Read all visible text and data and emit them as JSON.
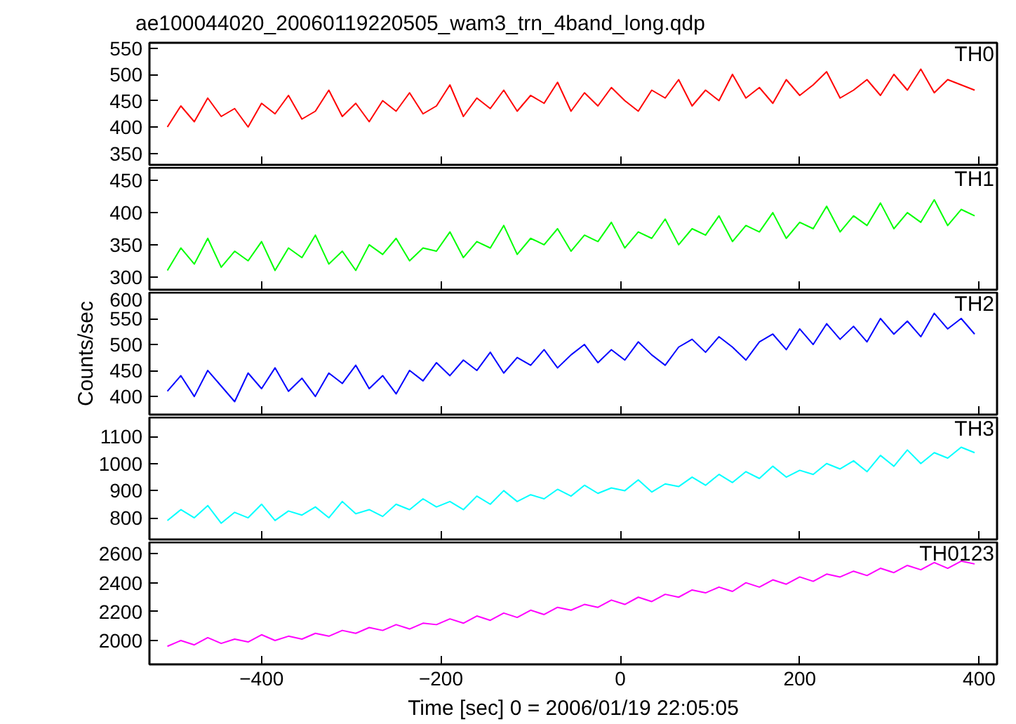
{
  "chart_data": [
    {
      "type": "line",
      "title": "ae100044020_20060119220505_wam3_trn_4band_long.qdp",
      "tick_labels": "y",
      "grid": false,
      "xlim": [
        -525,
        420
      ],
      "xticks": [
        -400,
        -200,
        0,
        200,
        400
      ],
      "ylim": [
        328,
        560
      ],
      "yticks": [
        350,
        400,
        450,
        500,
        550
      ],
      "x": [
        -505,
        -490,
        -475,
        -460,
        -445,
        -430,
        -415,
        -400,
        -385,
        -370,
        -355,
        -340,
        -325,
        -310,
        -295,
        -280,
        -265,
        -250,
        -235,
        -220,
        -205,
        -190,
        -175,
        -160,
        -145,
        -130,
        -115,
        -100,
        -85,
        -70,
        -55,
        -40,
        -25,
        -10,
        5,
        20,
        35,
        50,
        65,
        80,
        95,
        110,
        125,
        140,
        155,
        170,
        185,
        200,
        215,
        230,
        245,
        260,
        275,
        290,
        305,
        320,
        335,
        350,
        365,
        380,
        395
      ],
      "series": [
        {
          "name": "TH0",
          "color": "#ff0000",
          "values": [
            400,
            440,
            410,
            455,
            420,
            435,
            400,
            445,
            425,
            460,
            415,
            430,
            470,
            420,
            445,
            410,
            450,
            430,
            465,
            425,
            440,
            480,
            420,
            455,
            435,
            470,
            430,
            460,
            445,
            485,
            430,
            465,
            440,
            475,
            450,
            430,
            470,
            455,
            490,
            440,
            470,
            450,
            500,
            455,
            475,
            445,
            490,
            460,
            480,
            505,
            455,
            470,
            490,
            460,
            500,
            470,
            510,
            465,
            490,
            480,
            470
          ]
        }
      ]
    },
    {
      "type": "line",
      "tick_labels": "y",
      "grid": false,
      "xlim": [
        -525,
        420
      ],
      "xticks": [
        -400,
        -200,
        0,
        200,
        400
      ],
      "ylim": [
        280,
        470
      ],
      "yticks": [
        300,
        350,
        400,
        450
      ],
      "x": [
        -505,
        -490,
        -475,
        -460,
        -445,
        -430,
        -415,
        -400,
        -385,
        -370,
        -355,
        -340,
        -325,
        -310,
        -295,
        -280,
        -265,
        -250,
        -235,
        -220,
        -205,
        -190,
        -175,
        -160,
        -145,
        -130,
        -115,
        -100,
        -85,
        -70,
        -55,
        -40,
        -25,
        -10,
        5,
        20,
        35,
        50,
        65,
        80,
        95,
        110,
        125,
        140,
        155,
        170,
        185,
        200,
        215,
        230,
        245,
        260,
        275,
        290,
        305,
        320,
        335,
        350,
        365,
        380,
        395
      ],
      "series": [
        {
          "name": "TH1",
          "color": "#00ff00",
          "values": [
            310,
            345,
            320,
            360,
            315,
            340,
            325,
            355,
            310,
            345,
            330,
            365,
            320,
            340,
            310,
            350,
            335,
            360,
            325,
            345,
            340,
            370,
            330,
            355,
            345,
            380,
            335,
            360,
            350,
            375,
            340,
            365,
            355,
            385,
            345,
            370,
            360,
            390,
            350,
            375,
            365,
            395,
            355,
            380,
            370,
            400,
            360,
            385,
            375,
            410,
            370,
            395,
            380,
            415,
            375,
            400,
            385,
            420,
            380,
            405,
            395
          ]
        }
      ]
    },
    {
      "type": "line",
      "ylabel": "Counts/sec",
      "tick_labels": "y",
      "grid": false,
      "xlim": [
        -525,
        420
      ],
      "xticks": [
        -400,
        -200,
        0,
        200,
        400
      ],
      "ylim": [
        365,
        600
      ],
      "yticks": [
        400,
        450,
        500,
        550,
        600
      ],
      "x": [
        -505,
        -490,
        -475,
        -460,
        -445,
        -430,
        -415,
        -400,
        -385,
        -370,
        -355,
        -340,
        -325,
        -310,
        -295,
        -280,
        -265,
        -250,
        -235,
        -220,
        -205,
        -190,
        -175,
        -160,
        -145,
        -130,
        -115,
        -100,
        -85,
        -70,
        -55,
        -40,
        -25,
        -10,
        5,
        20,
        35,
        50,
        65,
        80,
        95,
        110,
        125,
        140,
        155,
        170,
        185,
        200,
        215,
        230,
        245,
        260,
        275,
        290,
        305,
        320,
        335,
        350,
        365,
        380,
        395
      ],
      "series": [
        {
          "name": "TH2",
          "color": "#0000ff",
          "values": [
            410,
            440,
            400,
            450,
            420,
            390,
            445,
            415,
            455,
            410,
            435,
            400,
            445,
            425,
            460,
            415,
            440,
            405,
            450,
            430,
            465,
            440,
            470,
            450,
            485,
            445,
            475,
            460,
            490,
            455,
            480,
            500,
            465,
            490,
            470,
            505,
            480,
            460,
            495,
            510,
            485,
            515,
            495,
            470,
            505,
            520,
            490,
            530,
            500,
            540,
            510,
            535,
            505,
            550,
            520,
            545,
            515,
            560,
            530,
            550,
            520
          ]
        }
      ]
    },
    {
      "type": "line",
      "tick_labels": "y",
      "grid": false,
      "xlim": [
        -525,
        420
      ],
      "xticks": [
        -400,
        -200,
        0,
        200,
        400
      ],
      "ylim": [
        720,
        1170
      ],
      "yticks": [
        800,
        900,
        1000,
        1100
      ],
      "x": [
        -505,
        -490,
        -475,
        -460,
        -445,
        -430,
        -415,
        -400,
        -385,
        -370,
        -355,
        -340,
        -325,
        -310,
        -295,
        -280,
        -265,
        -250,
        -235,
        -220,
        -205,
        -190,
        -175,
        -160,
        -145,
        -130,
        -115,
        -100,
        -85,
        -70,
        -55,
        -40,
        -25,
        -10,
        5,
        20,
        35,
        50,
        65,
        80,
        95,
        110,
        125,
        140,
        155,
        170,
        185,
        200,
        215,
        230,
        245,
        260,
        275,
        290,
        305,
        320,
        335,
        350,
        365,
        380,
        395
      ],
      "series": [
        {
          "name": "TH3",
          "color": "#00ffff",
          "values": [
            790,
            830,
            800,
            845,
            780,
            820,
            800,
            850,
            790,
            825,
            810,
            840,
            800,
            860,
            815,
            830,
            805,
            850,
            830,
            870,
            840,
            860,
            830,
            880,
            850,
            900,
            860,
            885,
            870,
            905,
            880,
            920,
            890,
            910,
            900,
            940,
            895,
            925,
            915,
            950,
            920,
            960,
            930,
            970,
            945,
            990,
            950,
            975,
            960,
            1000,
            980,
            1010,
            970,
            1030,
            990,
            1050,
            1000,
            1040,
            1020,
            1060,
            1040
          ]
        }
      ]
    },
    {
      "type": "line",
      "xlabel": "Time [sec] 0 = 2006/01/19 22:05:05",
      "grid": false,
      "xlim": [
        -525,
        420
      ],
      "xticks": [
        -400,
        -200,
        0,
        200,
        400
      ],
      "ylim": [
        1835,
        2680
      ],
      "yticks": [
        2000,
        2200,
        2400,
        2600
      ],
      "x": [
        -505,
        -490,
        -475,
        -460,
        -445,
        -430,
        -415,
        -400,
        -385,
        -370,
        -355,
        -340,
        -325,
        -310,
        -295,
        -280,
        -265,
        -250,
        -235,
        -220,
        -205,
        -190,
        -175,
        -160,
        -145,
        -130,
        -115,
        -100,
        -85,
        -70,
        -55,
        -40,
        -25,
        -10,
        5,
        20,
        35,
        50,
        65,
        80,
        95,
        110,
        125,
        140,
        155,
        170,
        185,
        200,
        215,
        230,
        245,
        260,
        275,
        290,
        305,
        320,
        335,
        350,
        365,
        380,
        395
      ],
      "series": [
        {
          "name": "TH0123",
          "color": "#ff00ff",
          "values": [
            1960,
            2000,
            1970,
            2020,
            1980,
            2010,
            1990,
            2040,
            2000,
            2030,
            2010,
            2050,
            2030,
            2070,
            2050,
            2090,
            2070,
            2110,
            2080,
            2120,
            2110,
            2150,
            2120,
            2170,
            2140,
            2190,
            2160,
            2210,
            2180,
            2230,
            2210,
            2250,
            2230,
            2280,
            2250,
            2300,
            2270,
            2320,
            2300,
            2350,
            2330,
            2370,
            2340,
            2400,
            2370,
            2420,
            2390,
            2440,
            2410,
            2460,
            2440,
            2480,
            2450,
            2500,
            2470,
            2520,
            2490,
            2540,
            2500,
            2550,
            2530
          ]
        }
      ]
    }
  ]
}
